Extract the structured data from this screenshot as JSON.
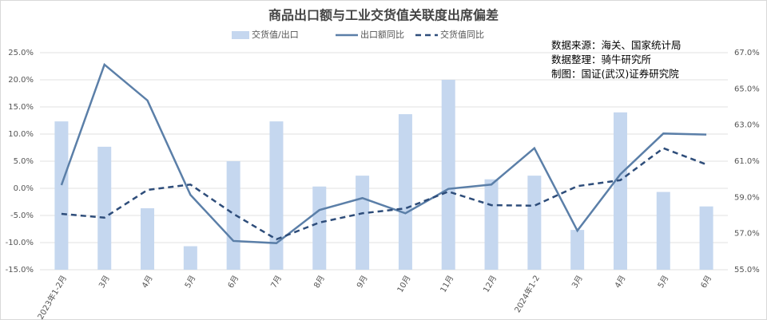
{
  "chart_data": {
    "type": "bar_line",
    "title": "商品出口额与工业交货值关联度出席偏差",
    "annotations": [
      "数据来源：海关、国家统计局",
      "数据整理：骑牛研究所",
      "制图：国证(武汉)证券研究院"
    ],
    "categories": [
      "2023年1-2月",
      "3月",
      "4月",
      "5月",
      "6月",
      "7月",
      "8月",
      "9月",
      "10月",
      "11月",
      "12月",
      "2024年1-2",
      "3月",
      "4月",
      "5月",
      "6月"
    ],
    "series": [
      {
        "name": "交货值/出口",
        "type": "bar",
        "axis": "y2",
        "color": "#c5d7ef",
        "values": [
          63.2,
          61.8,
          58.4,
          56.3,
          61.0,
          63.2,
          59.6,
          60.2,
          63.6,
          65.5,
          60.0,
          60.2,
          57.2,
          63.7,
          59.3,
          58.5
        ]
      },
      {
        "name": "出口额同比",
        "type": "line",
        "color": "#5b7fa8",
        "values": [
          0.6,
          22.8,
          16.2,
          -1.2,
          -9.7,
          -10.1,
          -4.0,
          -1.8,
          -4.6,
          -0.1,
          0.7,
          7.4,
          -7.8,
          2.6,
          10.1,
          9.9
        ]
      },
      {
        "name": "交货值同比",
        "type": "line",
        "dashed": true,
        "color": "#2e4d7a",
        "values": [
          -4.7,
          -5.4,
          -0.3,
          0.7,
          -4.7,
          -9.4,
          -6.3,
          -4.6,
          -3.7,
          -0.6,
          -3.1,
          -3.2,
          0.4,
          1.5,
          7.4,
          4.4
        ]
      }
    ],
    "ylim": [
      -15,
      25
    ],
    "yticks": [
      {
        "value": -15,
        "label": "-15.0%"
      },
      {
        "value": -10,
        "label": "-10.0%"
      },
      {
        "value": -5,
        "label": "-5.0%"
      },
      {
        "value": 0,
        "label": "0.0%"
      },
      {
        "value": 5,
        "label": "5.0%"
      },
      {
        "value": 10,
        "label": "10.0%"
      },
      {
        "value": 15,
        "label": "15.0%"
      },
      {
        "value": 20,
        "label": "20.0%"
      },
      {
        "value": 25,
        "label": "25.0%"
      }
    ],
    "y2lim": [
      55,
      67
    ],
    "y2ticks": [
      {
        "value": 55,
        "label": "55.0%"
      },
      {
        "value": 57,
        "label": "57.0%"
      },
      {
        "value": 59,
        "label": "59.0%"
      },
      {
        "value": 61,
        "label": "61.0%"
      },
      {
        "value": 63,
        "label": "63.0%"
      },
      {
        "value": 65,
        "label": "65.0%"
      },
      {
        "value": 67,
        "label": "67.0%"
      }
    ],
    "grid": true
  }
}
